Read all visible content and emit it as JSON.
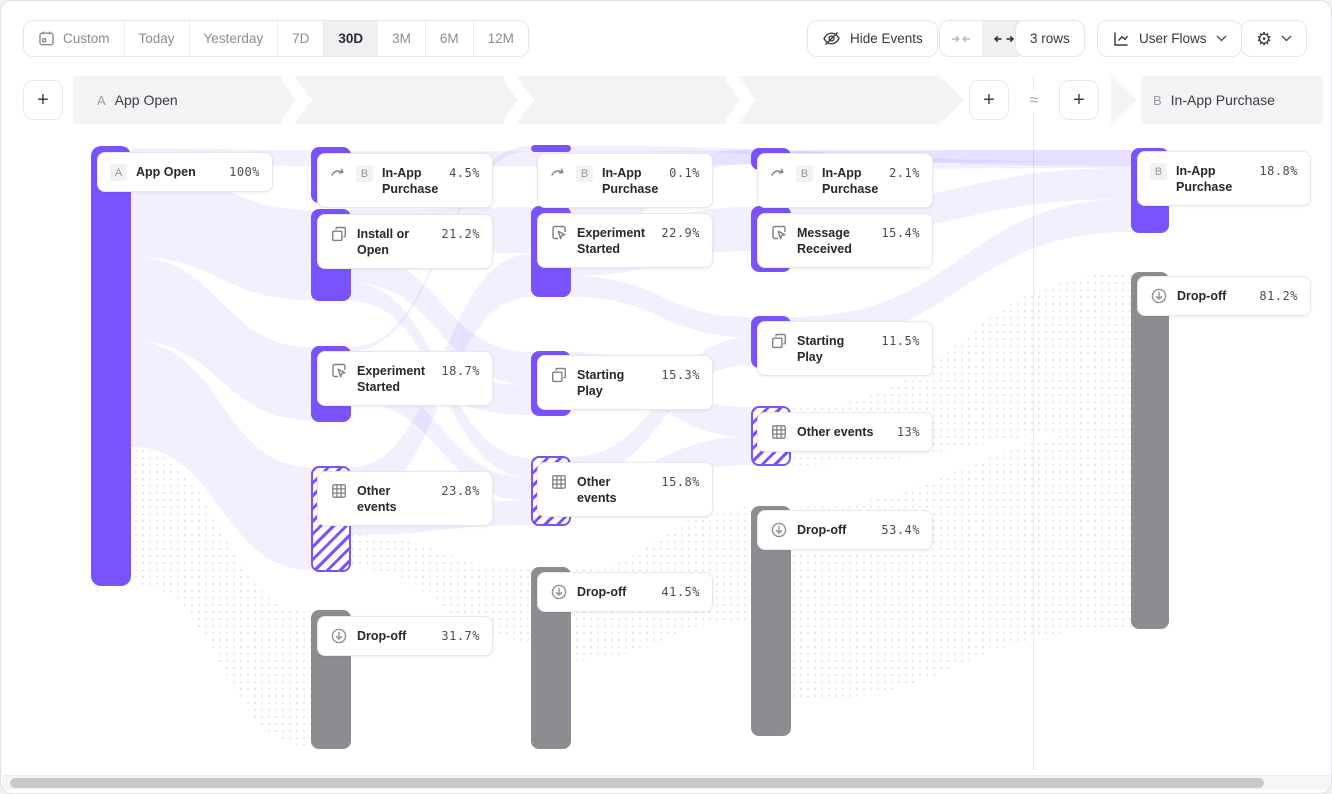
{
  "toolbar": {
    "date_ranges": [
      "Custom",
      "Today",
      "Yesterday",
      "7D",
      "30D",
      "3M",
      "6M",
      "12M"
    ],
    "selected_range": "30D",
    "hide_events_label": "Hide Events",
    "rows_label": "3 rows",
    "view_label": "User Flows"
  },
  "header": {
    "add_symbol": "+",
    "approx_symbol": "≈",
    "start": {
      "badge": "A",
      "label": "App Open"
    },
    "end": {
      "badge": "B",
      "label": "In-App Purchase"
    }
  },
  "colors": {
    "accent_purple": "#7B53FC",
    "dropoff_gray": "#8C8D91",
    "flow_link": "#ECE9FB"
  },
  "flow": {
    "columns": [
      {
        "nodes": [
          {
            "badge": "A",
            "label": "App Open",
            "pct": "100%",
            "icon": "none"
          }
        ]
      },
      {
        "nodes": [
          {
            "badge": "B",
            "label": "In-App Purchase",
            "pct": "4.5%",
            "icon": "goal-arrow"
          },
          {
            "label": "Install or Open",
            "pct": "21.2%",
            "icon": "layers"
          },
          {
            "label": "Experiment Started",
            "pct": "18.7%",
            "icon": "click"
          },
          {
            "label": "Other events",
            "pct": "23.8%",
            "icon": "grid"
          },
          {
            "label": "Drop-off",
            "pct": "31.7%",
            "icon": "dropoff"
          }
        ]
      },
      {
        "nodes": [
          {
            "badge": "B",
            "label": "In-App Purchase",
            "pct": "0.1%",
            "icon": "goal-arrow"
          },
          {
            "label": "Experiment Started",
            "pct": "22.9%",
            "icon": "click"
          },
          {
            "label": "Starting Play",
            "pct": "15.3%",
            "icon": "layers"
          },
          {
            "label": "Other events",
            "pct": "15.8%",
            "icon": "grid"
          },
          {
            "label": "Drop-off",
            "pct": "41.5%",
            "icon": "dropoff"
          }
        ]
      },
      {
        "nodes": [
          {
            "badge": "B",
            "label": "In-App Purchase",
            "pct": "2.1%",
            "icon": "goal-arrow"
          },
          {
            "label": "Message Received",
            "pct": "15.4%",
            "icon": "click"
          },
          {
            "label": "Starting Play",
            "pct": "11.5%",
            "icon": "layers"
          },
          {
            "label": "Other events",
            "pct": "13%",
            "icon": "grid"
          },
          {
            "label": "Drop-off",
            "pct": "53.4%",
            "icon": "dropoff"
          }
        ]
      },
      {
        "nodes": [
          {
            "badge": "B",
            "label": "In-App Purchase",
            "pct": "18.8%",
            "icon": "none"
          },
          {
            "label": "Drop-off",
            "pct": "81.2%",
            "icon": "dropoff"
          }
        ]
      }
    ]
  }
}
